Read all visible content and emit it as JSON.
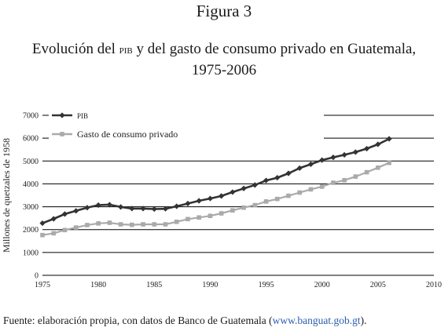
{
  "figure_label": "Figura 3",
  "title_part1": "Evolución del ",
  "title_pib": "pib",
  "title_part2": " y del gasto de consumo privado en Guatemala, 1975-2006",
  "source_prefix": "Fuente: elaboración propia, con datos de Banco de Guatemala (",
  "source_link": "www.banguat.gob.gt",
  "source_suffix": ").",
  "colors": {
    "pib": "#333333",
    "consumo": "#aaaaaa",
    "grid": "#000000"
  },
  "chart_data": {
    "type": "line",
    "ylabel": "Millones de quetzales de 1958",
    "xlabel": "",
    "xlim": [
      1975,
      2010
    ],
    "ylim": [
      0,
      7000
    ],
    "x_ticks": [
      1975,
      1980,
      1985,
      1990,
      1995,
      2000,
      2005,
      2010
    ],
    "y_ticks": [
      0,
      1000,
      2000,
      3000,
      4000,
      5000,
      6000,
      7000
    ],
    "grid": "horizontal",
    "legend_position": "top-left",
    "x": [
      1975,
      1976,
      1977,
      1978,
      1979,
      1980,
      1981,
      1982,
      1983,
      1984,
      1985,
      1986,
      1987,
      1988,
      1989,
      1990,
      1991,
      1992,
      1993,
      1994,
      1995,
      1996,
      1997,
      1998,
      1999,
      2000,
      2001,
      2002,
      2003,
      2004,
      2005,
      2006
    ],
    "series": [
      {
        "name": "PIB",
        "marker": "diamond",
        "values": [
          2280,
          2470,
          2680,
          2820,
          2960,
          3070,
          3090,
          2990,
          2920,
          2920,
          2900,
          2910,
          3020,
          3140,
          3260,
          3360,
          3470,
          3640,
          3800,
          3950,
          4150,
          4270,
          4460,
          4690,
          4860,
          5040,
          5160,
          5270,
          5390,
          5540,
          5730,
          5970
        ]
      },
      {
        "name": "Gasto de consumo privado",
        "marker": "square",
        "values": [
          1760,
          1840,
          1980,
          2090,
          2200,
          2270,
          2300,
          2230,
          2210,
          2230,
          2230,
          2230,
          2340,
          2460,
          2530,
          2600,
          2710,
          2840,
          2960,
          3070,
          3230,
          3340,
          3480,
          3620,
          3760,
          3880,
          4050,
          4160,
          4320,
          4510,
          4710,
          4920
        ]
      }
    ]
  }
}
